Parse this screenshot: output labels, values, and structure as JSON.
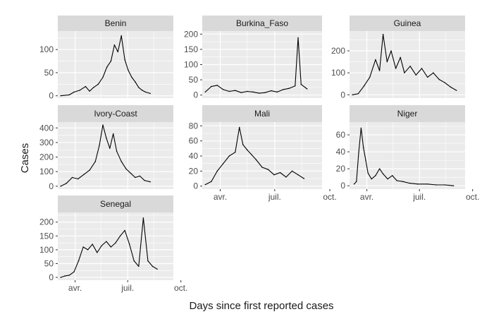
{
  "chart_data": {
    "type": "line",
    "layout": "facet-grid",
    "xlabel": "Days since first reported cases",
    "ylabel": "Cases",
    "x_ticks": [
      "avr.",
      "juil.",
      "oct."
    ],
    "x_range_days": [
      0,
      200
    ],
    "x_tick_days": [
      30,
      121,
      213
    ],
    "colors": {
      "panel_bg": "#ebebeb",
      "strip_bg": "#d9d9d9",
      "grid": "#ffffff",
      "line": "#000000",
      "text": "#4d4d4d",
      "title": "#1a1a1a"
    },
    "panels": [
      {
        "name": "Benin",
        "ylim": [
          -5,
          140
        ],
        "yticks": [
          0,
          50,
          100
        ],
        "series": [
          {
            "x": 5,
            "y": 0
          },
          {
            "x": 20,
            "y": 2
          },
          {
            "x": 28,
            "y": 8
          },
          {
            "x": 38,
            "y": 12
          },
          {
            "x": 48,
            "y": 20
          },
          {
            "x": 55,
            "y": 10
          },
          {
            "x": 62,
            "y": 18
          },
          {
            "x": 70,
            "y": 25
          },
          {
            "x": 78,
            "y": 40
          },
          {
            "x": 85,
            "y": 62
          },
          {
            "x": 92,
            "y": 75
          },
          {
            "x": 98,
            "y": 110
          },
          {
            "x": 104,
            "y": 95
          },
          {
            "x": 110,
            "y": 130
          },
          {
            "x": 116,
            "y": 78
          },
          {
            "x": 122,
            "y": 55
          },
          {
            "x": 128,
            "y": 40
          },
          {
            "x": 134,
            "y": 30
          },
          {
            "x": 140,
            "y": 18
          },
          {
            "x": 146,
            "y": 12
          },
          {
            "x": 152,
            "y": 8
          },
          {
            "x": 160,
            "y": 5
          }
        ]
      },
      {
        "name": "Burkina_Faso",
        "ylim": [
          -10,
          210
        ],
        "yticks": [
          0,
          50,
          100,
          150,
          200
        ],
        "series": [
          {
            "x": 5,
            "y": 10
          },
          {
            "x": 15,
            "y": 28
          },
          {
            "x": 25,
            "y": 32
          },
          {
            "x": 35,
            "y": 18
          },
          {
            "x": 45,
            "y": 12
          },
          {
            "x": 55,
            "y": 15
          },
          {
            "x": 65,
            "y": 8
          },
          {
            "x": 75,
            "y": 12
          },
          {
            "x": 85,
            "y": 10
          },
          {
            "x": 95,
            "y": 6
          },
          {
            "x": 105,
            "y": 8
          },
          {
            "x": 115,
            "y": 14
          },
          {
            "x": 125,
            "y": 10
          },
          {
            "x": 135,
            "y": 18
          },
          {
            "x": 145,
            "y": 22
          },
          {
            "x": 155,
            "y": 30
          },
          {
            "x": 160,
            "y": 188
          },
          {
            "x": 165,
            "y": 35
          },
          {
            "x": 175,
            "y": 20
          }
        ]
      },
      {
        "name": "Guinea",
        "ylim": [
          -15,
          290
        ],
        "yticks": [
          0,
          100,
          200
        ],
        "series": [
          {
            "x": 5,
            "y": 0
          },
          {
            "x": 15,
            "y": 5
          },
          {
            "x": 25,
            "y": 40
          },
          {
            "x": 35,
            "y": 80
          },
          {
            "x": 45,
            "y": 160
          },
          {
            "x": 52,
            "y": 110
          },
          {
            "x": 58,
            "y": 275
          },
          {
            "x": 65,
            "y": 150
          },
          {
            "x": 72,
            "y": 200
          },
          {
            "x": 80,
            "y": 120
          },
          {
            "x": 88,
            "y": 170
          },
          {
            "x": 95,
            "y": 100
          },
          {
            "x": 105,
            "y": 130
          },
          {
            "x": 115,
            "y": 90
          },
          {
            "x": 125,
            "y": 120
          },
          {
            "x": 135,
            "y": 80
          },
          {
            "x": 145,
            "y": 100
          },
          {
            "x": 155,
            "y": 70
          },
          {
            "x": 165,
            "y": 55
          },
          {
            "x": 175,
            "y": 35
          },
          {
            "x": 185,
            "y": 20
          }
        ]
      },
      {
        "name": "Ivory-Coast",
        "ylim": [
          -20,
          440
        ],
        "yticks": [
          0,
          100,
          200,
          300,
          400
        ],
        "series": [
          {
            "x": 5,
            "y": 0
          },
          {
            "x": 15,
            "y": 20
          },
          {
            "x": 25,
            "y": 60
          },
          {
            "x": 35,
            "y": 50
          },
          {
            "x": 45,
            "y": 80
          },
          {
            "x": 55,
            "y": 110
          },
          {
            "x": 65,
            "y": 170
          },
          {
            "x": 72,
            "y": 280
          },
          {
            "x": 78,
            "y": 420
          },
          {
            "x": 84,
            "y": 330
          },
          {
            "x": 90,
            "y": 260
          },
          {
            "x": 96,
            "y": 360
          },
          {
            "x": 102,
            "y": 240
          },
          {
            "x": 110,
            "y": 170
          },
          {
            "x": 118,
            "y": 120
          },
          {
            "x": 126,
            "y": 90
          },
          {
            "x": 134,
            "y": 60
          },
          {
            "x": 142,
            "y": 70
          },
          {
            "x": 150,
            "y": 40
          },
          {
            "x": 160,
            "y": 30
          }
        ]
      },
      {
        "name": "Mali",
        "ylim": [
          -4,
          85
        ],
        "yticks": [
          0,
          20,
          40,
          60,
          80
        ],
        "series": [
          {
            "x": 5,
            "y": 2
          },
          {
            "x": 15,
            "y": 6
          },
          {
            "x": 25,
            "y": 20
          },
          {
            "x": 35,
            "y": 30
          },
          {
            "x": 45,
            "y": 40
          },
          {
            "x": 55,
            "y": 45
          },
          {
            "x": 62,
            "y": 78
          },
          {
            "x": 68,
            "y": 55
          },
          {
            "x": 75,
            "y": 48
          },
          {
            "x": 82,
            "y": 42
          },
          {
            "x": 90,
            "y": 35
          },
          {
            "x": 100,
            "y": 25
          },
          {
            "x": 110,
            "y": 22
          },
          {
            "x": 120,
            "y": 15
          },
          {
            "x": 130,
            "y": 18
          },
          {
            "x": 140,
            "y": 12
          },
          {
            "x": 150,
            "y": 20
          },
          {
            "x": 160,
            "y": 15
          },
          {
            "x": 170,
            "y": 10
          }
        ]
      },
      {
        "name": "Niger",
        "ylim": [
          -4,
          75
        ],
        "yticks": [
          0,
          20,
          40,
          60
        ],
        "series": [
          {
            "x": 8,
            "y": 2
          },
          {
            "x": 12,
            "y": 5
          },
          {
            "x": 16,
            "y": 40
          },
          {
            "x": 20,
            "y": 68
          },
          {
            "x": 24,
            "y": 45
          },
          {
            "x": 28,
            "y": 30
          },
          {
            "x": 32,
            "y": 15
          },
          {
            "x": 38,
            "y": 8
          },
          {
            "x": 45,
            "y": 12
          },
          {
            "x": 52,
            "y": 20
          },
          {
            "x": 58,
            "y": 14
          },
          {
            "x": 66,
            "y": 8
          },
          {
            "x": 74,
            "y": 12
          },
          {
            "x": 82,
            "y": 6
          },
          {
            "x": 92,
            "y": 5
          },
          {
            "x": 104,
            "y": 3
          },
          {
            "x": 118,
            "y": 2
          },
          {
            "x": 135,
            "y": 2
          },
          {
            "x": 150,
            "y": 1
          },
          {
            "x": 165,
            "y": 1
          },
          {
            "x": 180,
            "y": 0
          }
        ]
      },
      {
        "name": "Senegal",
        "ylim": [
          -10,
          235
        ],
        "yticks": [
          0,
          50,
          100,
          150,
          200
        ],
        "series": [
          {
            "x": 5,
            "y": 0
          },
          {
            "x": 12,
            "y": 5
          },
          {
            "x": 20,
            "y": 8
          },
          {
            "x": 28,
            "y": 20
          },
          {
            "x": 36,
            "y": 60
          },
          {
            "x": 44,
            "y": 110
          },
          {
            "x": 52,
            "y": 100
          },
          {
            "x": 60,
            "y": 120
          },
          {
            "x": 68,
            "y": 90
          },
          {
            "x": 76,
            "y": 115
          },
          {
            "x": 84,
            "y": 130
          },
          {
            "x": 92,
            "y": 110
          },
          {
            "x": 100,
            "y": 125
          },
          {
            "x": 108,
            "y": 150
          },
          {
            "x": 116,
            "y": 170
          },
          {
            "x": 124,
            "y": 120
          },
          {
            "x": 132,
            "y": 60
          },
          {
            "x": 140,
            "y": 40
          },
          {
            "x": 148,
            "y": 215
          },
          {
            "x": 156,
            "y": 60
          },
          {
            "x": 164,
            "y": 40
          },
          {
            "x": 172,
            "y": 30
          }
        ]
      }
    ]
  }
}
